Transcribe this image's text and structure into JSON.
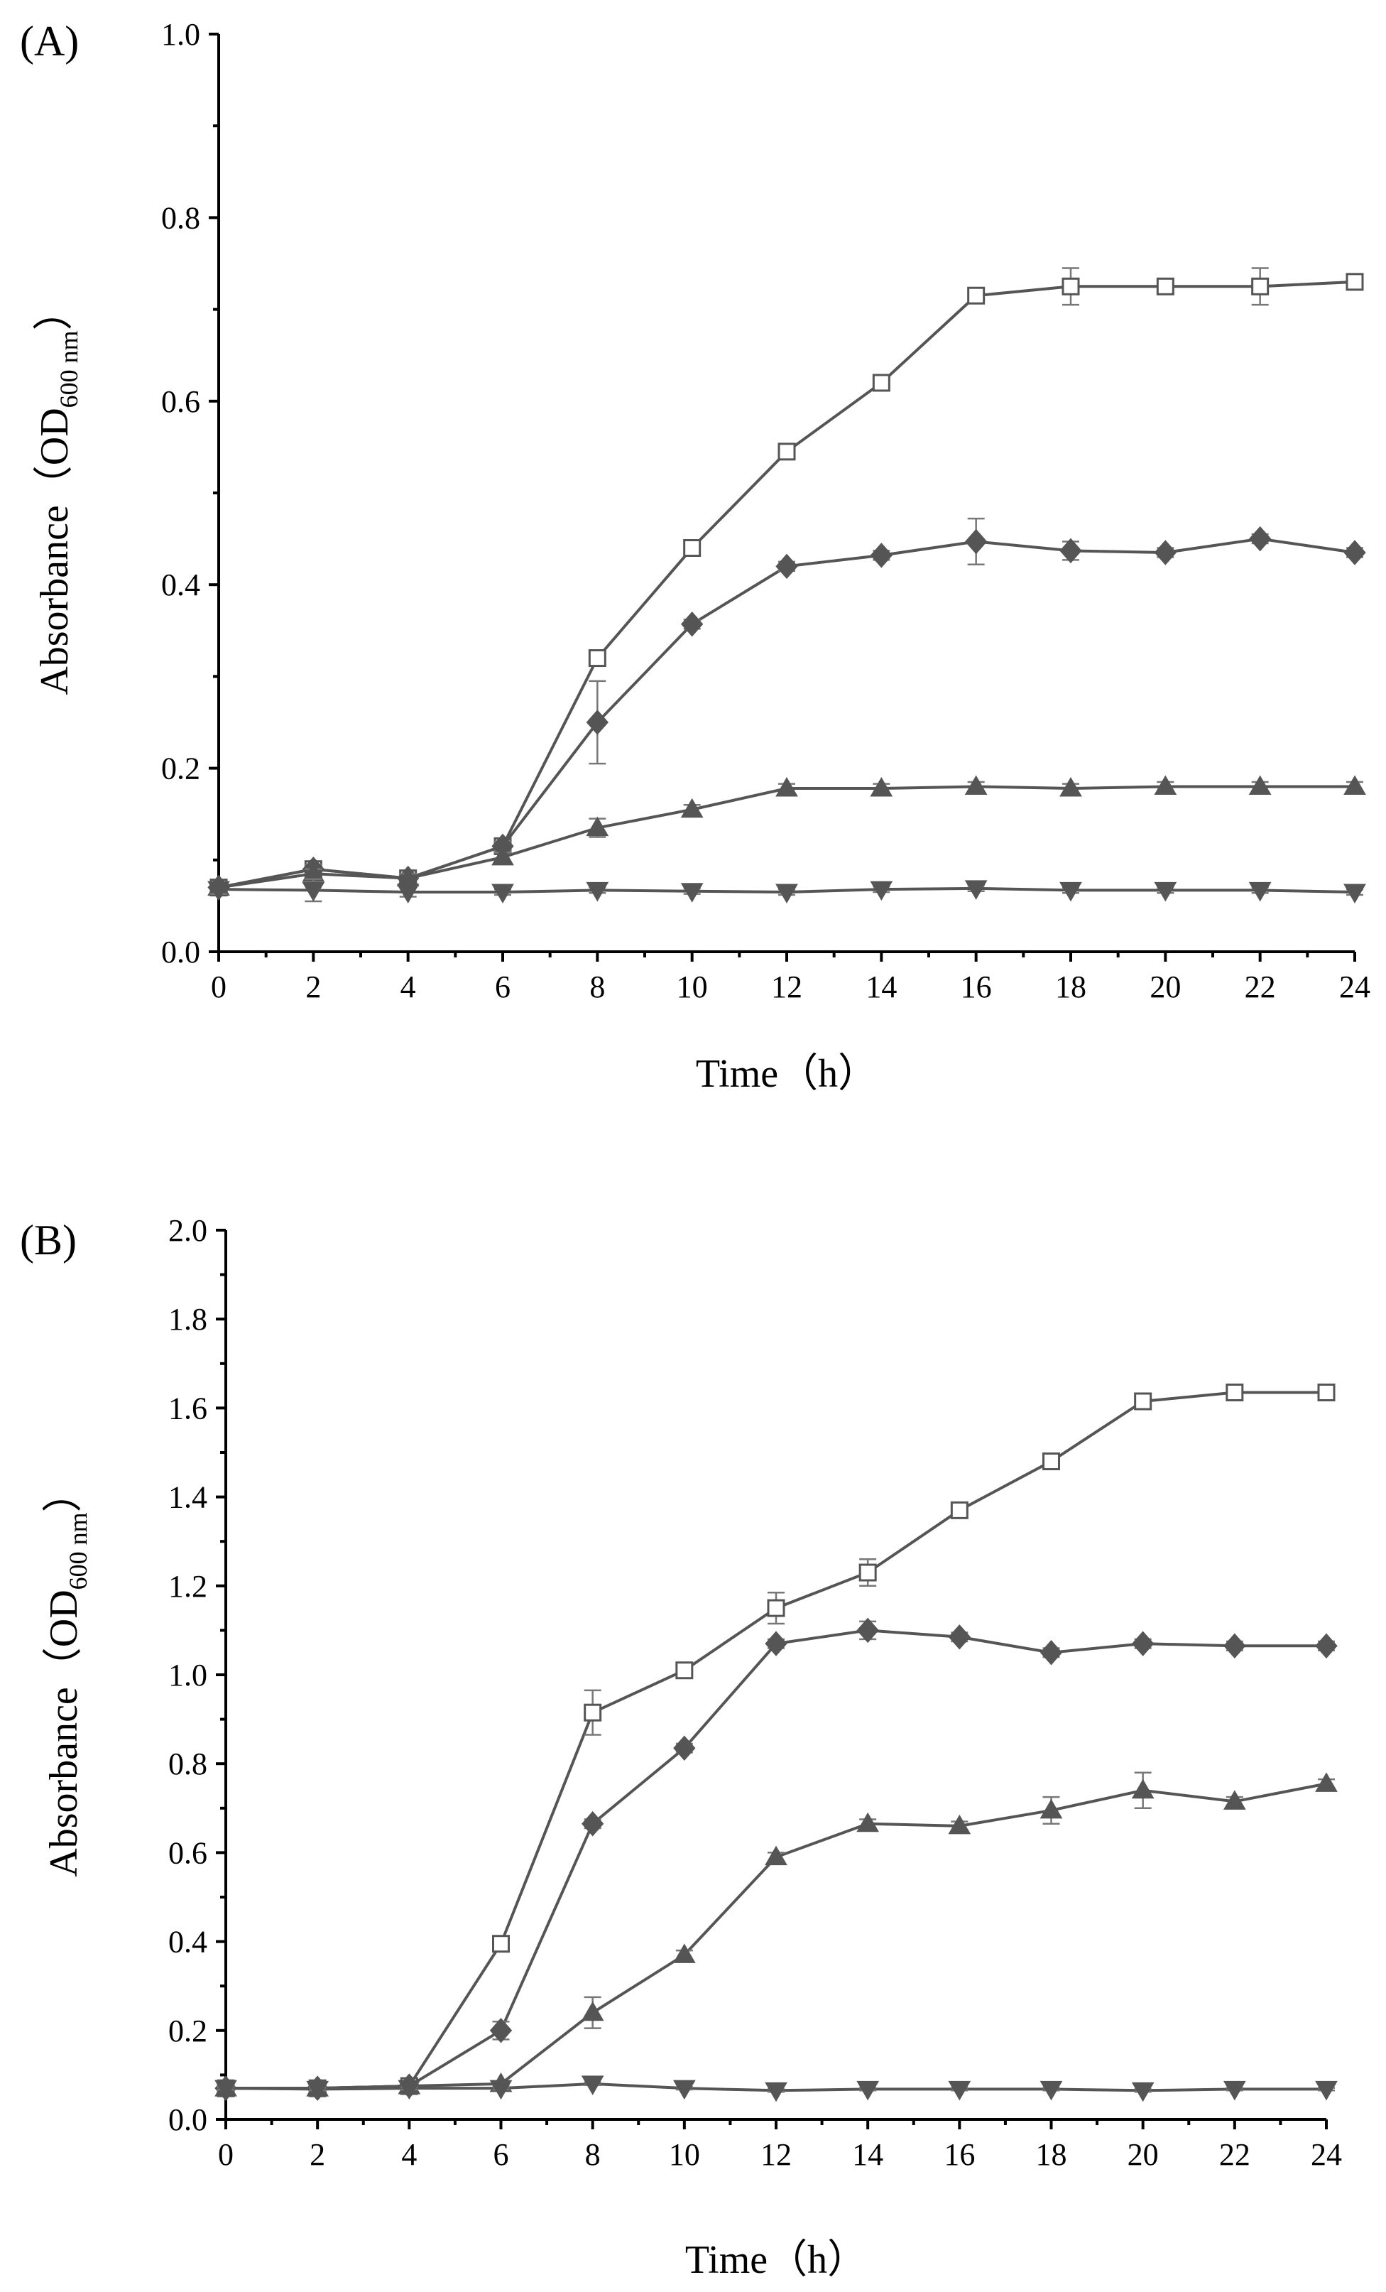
{
  "chart_data": [
    {
      "panel": "(A)",
      "type": "line",
      "xlabel": "Time（h）",
      "ylabel_main": "Absorbance（OD",
      "ylabel_sub": "600 nm",
      "ylabel_close": "）",
      "xlim": [
        0,
        24
      ],
      "ylim": [
        0,
        1.0
      ],
      "x_ticks": [
        0,
        2,
        4,
        6,
        8,
        10,
        12,
        14,
        16,
        18,
        20,
        22,
        24
      ],
      "y_ticks": [
        0.0,
        0.2,
        0.4,
        0.6,
        0.8,
        1.0
      ],
      "x_tick_labels": [
        "0",
        "2",
        "4",
        "6",
        "8",
        "10",
        "12",
        "14",
        "16",
        "18",
        "20",
        "22",
        "24"
      ],
      "y_tick_labels": [
        "0.0",
        "0.2",
        "0.4",
        "0.6",
        "0.8",
        "1.0"
      ],
      "x": [
        0,
        2,
        4,
        6,
        8,
        10,
        12,
        14,
        16,
        18,
        20,
        22,
        24
      ],
      "series": [
        {
          "marker": "open-square",
          "values": [
            0.07,
            0.09,
            0.08,
            0.115,
            0.32,
            0.44,
            0.545,
            0.62,
            0.715,
            0.725,
            0.725,
            0.725,
            0.73
          ],
          "errors": [
            0.005,
            0.005,
            0.005,
            0.005,
            0.005,
            0.005,
            0.005,
            0.005,
            0.005,
            0.02,
            0.005,
            0.02,
            0.005
          ]
        },
        {
          "marker": "filled-diamond",
          "values": [
            0.07,
            0.09,
            0.08,
            0.115,
            0.25,
            0.357,
            0.42,
            0.432,
            0.447,
            0.437,
            0.435,
            0.45,
            0.435
          ],
          "errors": [
            0.005,
            0.005,
            0.005,
            0.005,
            0.045,
            0.005,
            0.005,
            0.005,
            0.025,
            0.01,
            0.005,
            0.005,
            0.005
          ]
        },
        {
          "marker": "filled-triangle-up",
          "values": [
            0.07,
            0.085,
            0.08,
            0.103,
            0.135,
            0.155,
            0.178,
            0.178,
            0.18,
            0.178,
            0.18,
            0.18,
            0.18
          ],
          "errors": [
            0.005,
            0.005,
            0.005,
            0.005,
            0.01,
            0.005,
            0.005,
            0.005,
            0.005,
            0.005,
            0.005,
            0.005,
            0.005
          ]
        },
        {
          "marker": "filled-triangle-down",
          "values": [
            0.068,
            0.067,
            0.065,
            0.065,
            0.067,
            0.066,
            0.065,
            0.068,
            0.069,
            0.067,
            0.067,
            0.067,
            0.065
          ],
          "errors": [
            0.005,
            0.012,
            0.005,
            0.003,
            0.003,
            0.003,
            0.003,
            0.003,
            0.003,
            0.003,
            0.003,
            0.003,
            0.003
          ]
        }
      ]
    },
    {
      "panel": "(B)",
      "type": "line",
      "xlabel": "Time（h）",
      "ylabel_main": "Absorbance（OD",
      "ylabel_sub": "600 nm",
      "ylabel_close": "）",
      "xlim": [
        0,
        24
      ],
      "ylim": [
        0,
        2.0
      ],
      "x_ticks": [
        0,
        2,
        4,
        6,
        8,
        10,
        12,
        14,
        16,
        18,
        20,
        22,
        24
      ],
      "y_ticks": [
        0.0,
        0.2,
        0.4,
        0.6,
        0.8,
        1.0,
        1.2,
        1.4,
        1.6,
        1.8,
        2.0
      ],
      "x_tick_labels": [
        "0",
        "2",
        "4",
        "6",
        "8",
        "10",
        "12",
        "14",
        "16",
        "18",
        "20",
        "22",
        "24"
      ],
      "y_tick_labels": [
        "0.0",
        "0.2",
        "0.4",
        "0.6",
        "0.8",
        "1.0",
        "1.2",
        "1.4",
        "1.6",
        "1.8",
        "2.0"
      ],
      "x": [
        0,
        2,
        4,
        6,
        8,
        10,
        12,
        14,
        16,
        18,
        20,
        22,
        24
      ],
      "series": [
        {
          "marker": "open-square",
          "values": [
            0.07,
            0.07,
            0.075,
            0.395,
            0.915,
            1.01,
            1.15,
            1.23,
            1.37,
            1.48,
            1.615,
            1.635,
            1.635
          ],
          "errors": [
            0.005,
            0.005,
            0.005,
            0.01,
            0.05,
            0.01,
            0.035,
            0.03,
            0.01,
            0.01,
            0.01,
            0.01,
            0.01
          ]
        },
        {
          "marker": "filled-diamond",
          "values": [
            0.07,
            0.07,
            0.075,
            0.2,
            0.665,
            0.835,
            1.07,
            1.1,
            1.085,
            1.05,
            1.07,
            1.065,
            1.065
          ],
          "errors": [
            0.005,
            0.005,
            0.005,
            0.02,
            0.01,
            0.01,
            0.01,
            0.02,
            0.01,
            0.01,
            0.01,
            0.01,
            0.01
          ]
        },
        {
          "marker": "filled-triangle-up",
          "values": [
            0.07,
            0.07,
            0.075,
            0.08,
            0.24,
            0.37,
            0.59,
            0.665,
            0.66,
            0.695,
            0.74,
            0.715,
            0.755
          ],
          "errors": [
            0.005,
            0.005,
            0.005,
            0.005,
            0.035,
            0.01,
            0.01,
            0.01,
            0.01,
            0.03,
            0.04,
            0.01,
            0.01
          ]
        },
        {
          "marker": "filled-triangle-down",
          "values": [
            0.07,
            0.068,
            0.07,
            0.07,
            0.08,
            0.07,
            0.065,
            0.068,
            0.068,
            0.068,
            0.065,
            0.068,
            0.068
          ],
          "errors": [
            0.003,
            0.003,
            0.003,
            0.003,
            0.003,
            0.003,
            0.003,
            0.003,
            0.003,
            0.003,
            0.003,
            0.003,
            0.003
          ]
        }
      ]
    }
  ]
}
